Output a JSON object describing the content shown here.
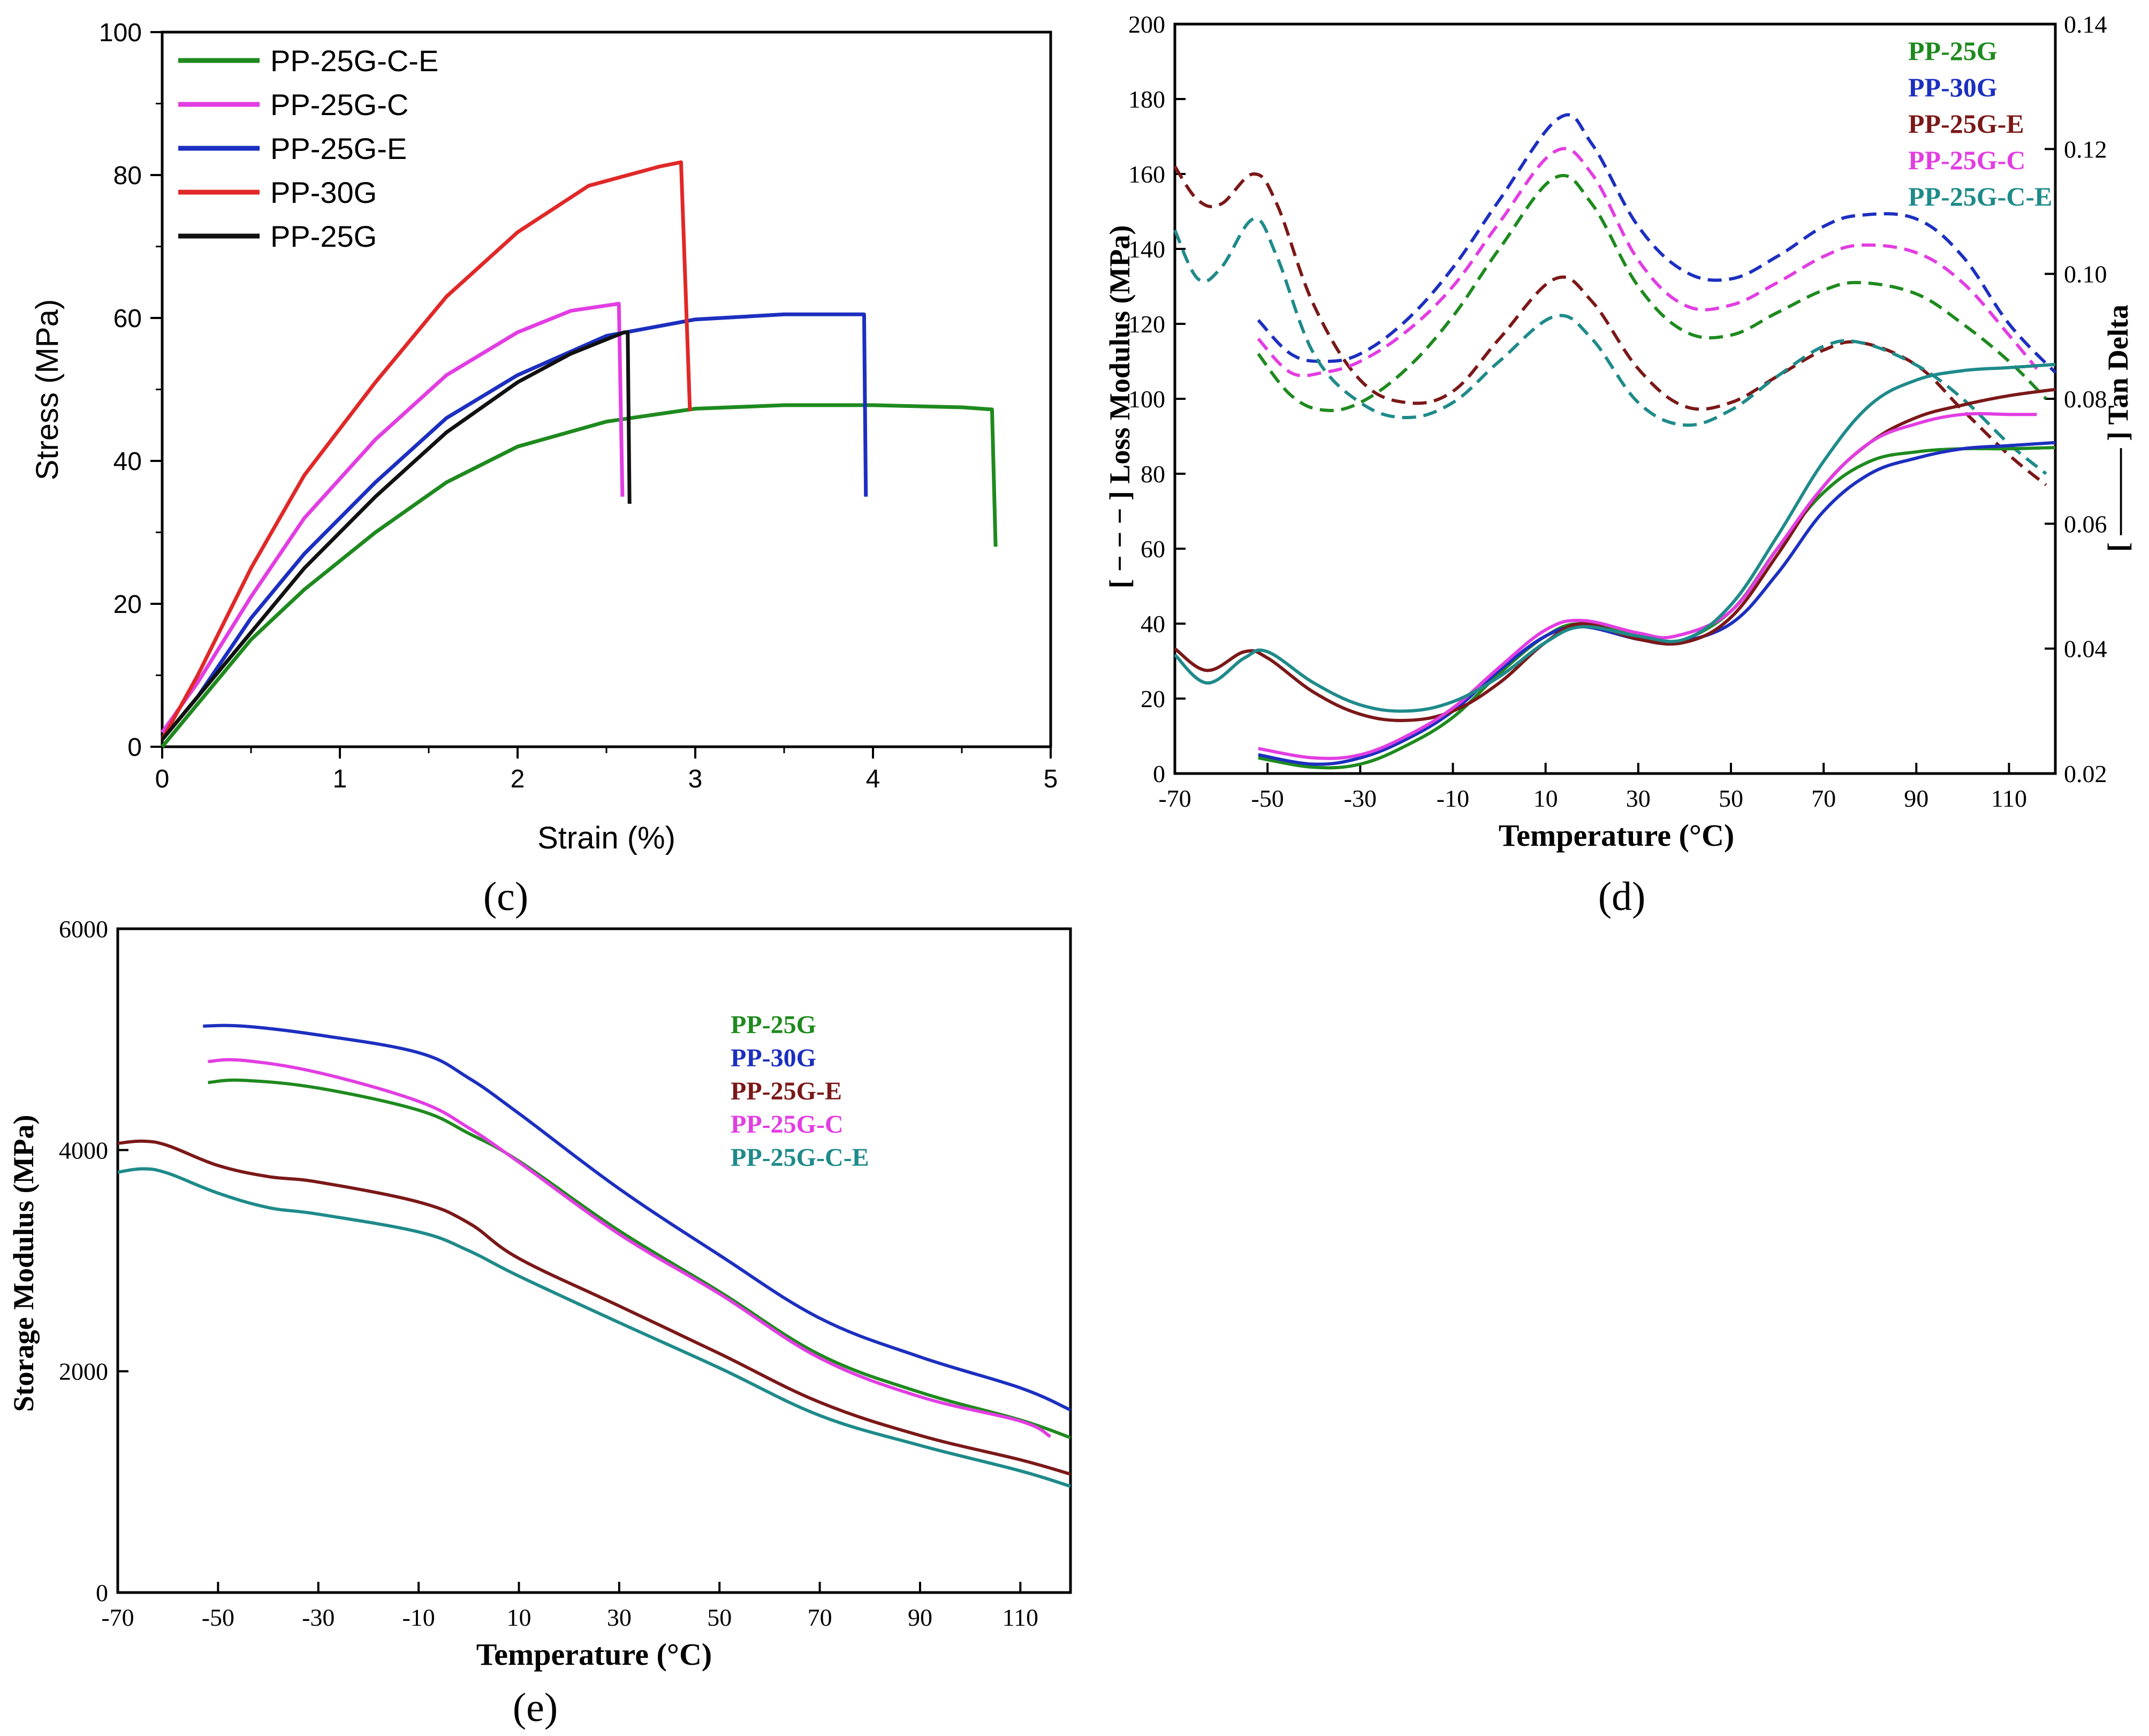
{
  "panels": {
    "c": {
      "caption": "(c)",
      "xlabel": "Strain (%)",
      "ylabel": "Stress (MPa)",
      "xlim": [
        0,
        5
      ],
      "ylim": [
        0,
        100
      ],
      "xticks": [
        "0",
        "1",
        "2",
        "3",
        "4",
        "5"
      ],
      "yticks": [
        "0",
        "20",
        "40",
        "60",
        "80",
        "100"
      ]
    },
    "d": {
      "caption": "(d)",
      "xlabel": "Temperature (°C)",
      "ylabel_left": "[ − − − ] Loss Modulus (MPa)",
      "ylabel_right": "[ ——— ] Tan Delta",
      "xticks": [
        "-70",
        "-50",
        "-30",
        "-10",
        "10",
        "30",
        "50",
        "70",
        "90",
        "110"
      ],
      "yticks_left": [
        "0",
        "20",
        "40",
        "60",
        "80",
        "100",
        "120",
        "140",
        "160",
        "180",
        "200"
      ],
      "yticks_right": [
        "0.02",
        "0.04",
        "0.06",
        "0.08",
        "0.10",
        "0.12",
        "0.14"
      ]
    },
    "e": {
      "caption": "(e)",
      "xlabel": "Temperature (°C)",
      "ylabel": "Storage Modulus (MPa)",
      "xticks": [
        "-70",
        "-50",
        "-30",
        "-10",
        "10",
        "30",
        "50",
        "70",
        "90",
        "110"
      ],
      "yticks": [
        "0",
        "2000",
        "4000",
        "6000"
      ]
    }
  },
  "chart_data": [
    {
      "panel": "c",
      "type": "line",
      "title": "",
      "xlabel": "Strain (%)",
      "ylabel": "Stress (MPa)",
      "xlim": [
        0,
        5
      ],
      "ylim": [
        0,
        100
      ],
      "grid": false,
      "legend_position": "top-left",
      "series": [
        {
          "name": "PP-25G-C-E",
          "color": "#1e8a1e",
          "x": [
            0,
            0.2,
            0.5,
            0.8,
            1.2,
            1.6,
            2.0,
            2.5,
            3.0,
            3.5,
            4.0,
            4.5,
            4.67,
            4.69
          ],
          "y": [
            0,
            6,
            15,
            22,
            30,
            37,
            42,
            45.5,
            47.3,
            47.8,
            47.8,
            47.5,
            47.2,
            28
          ]
        },
        {
          "name": "PP-25G-C",
          "color": "#e23de2",
          "x": [
            0,
            0.2,
            0.5,
            0.8,
            1.2,
            1.6,
            2.0,
            2.3,
            2.57,
            2.59
          ],
          "y": [
            2,
            9,
            21,
            32,
            43,
            52,
            58,
            61,
            62,
            35
          ]
        },
        {
          "name": "PP-25G-E",
          "color": "#1c2fc0",
          "x": [
            0,
            0.2,
            0.5,
            0.8,
            1.2,
            1.6,
            2.0,
            2.5,
            3.0,
            3.5,
            3.95,
            3.96
          ],
          "y": [
            1,
            7,
            18,
            27,
            37,
            46,
            52,
            57.5,
            59.8,
            60.5,
            60.5,
            35
          ]
        },
        {
          "name": "PP-30G",
          "color": "#e02828",
          "x": [
            0,
            0.2,
            0.5,
            0.8,
            1.2,
            1.6,
            2.0,
            2.4,
            2.8,
            2.92,
            2.97
          ],
          "y": [
            1,
            10,
            25,
            38,
            51,
            63,
            72,
            78.5,
            81.2,
            81.8,
            47
          ]
        },
        {
          "name": "PP-25G",
          "color": "#111111",
          "x": [
            0,
            0.2,
            0.5,
            0.8,
            1.2,
            1.6,
            2.0,
            2.3,
            2.6,
            2.62,
            2.63
          ],
          "y": [
            1,
            7,
            16,
            25,
            35,
            44,
            51,
            55,
            58,
            58,
            34
          ]
        }
      ]
    },
    {
      "panel": "d",
      "type": "line",
      "title": "",
      "xlabel": "Temperature (°C)",
      "ylabel_left": "Loss Modulus (MPa)",
      "ylabel_right": "Tan Delta",
      "xlim": [
        -70,
        120
      ],
      "ylim_left": [
        0,
        200
      ],
      "ylim_right": [
        0.02,
        0.14
      ],
      "grid": false,
      "legend_position": "top-right",
      "legend": [
        {
          "name": "PP-25G",
          "color": "#1e8a1e"
        },
        {
          "name": "PP-30G",
          "color": "#1c2fc0"
        },
        {
          "name": "PP-25G-E",
          "color": "#7b1818"
        },
        {
          "name": "PP-25G-C",
          "color": "#e23de2"
        },
        {
          "name": "PP-25G-C-E",
          "color": "#1f8a8a"
        }
      ],
      "series": [
        {
          "name": "PP-25G",
          "axis": "left",
          "style": "dashed",
          "color": "#1e8a1e",
          "x": [
            -52,
            -45,
            -38,
            -30,
            -20,
            -10,
            0,
            12,
            20,
            30,
            40,
            50,
            60,
            70,
            78,
            90,
            100,
            110,
            118
          ],
          "y": [
            112,
            101,
            97,
            99,
            108,
            122,
            140,
            159,
            152,
            130,
            118,
            117,
            123,
            129,
            131,
            128,
            120,
            110,
            100
          ]
        },
        {
          "name": "PP-30G",
          "axis": "left",
          "style": "dashed",
          "color": "#1c2fc0",
          "x": [
            -52,
            -45,
            -38,
            -30,
            -20,
            -10,
            0,
            13,
            20,
            30,
            40,
            50,
            60,
            70,
            78,
            90,
            100,
            110,
            120
          ],
          "y": [
            121,
            112,
            110,
            112,
            121,
            135,
            153,
            175,
            168,
            146,
            134,
            132,
            138,
            146,
            149,
            148,
            138,
            120,
            107
          ]
        },
        {
          "name": "PP-25G-E",
          "axis": "left",
          "style": "dashed",
          "color": "#7b1818",
          "x": [
            -70,
            -65,
            -60,
            -53,
            -48,
            -40,
            -30,
            -20,
            -10,
            0,
            12,
            20,
            30,
            40,
            50,
            60,
            70,
            78,
            90,
            100,
            110,
            118
          ],
          "y": [
            162,
            153,
            152,
            160,
            152,
            125,
            105,
            99,
            102,
            116,
            132,
            126,
            108,
            98,
            99,
            106,
            113,
            115,
            109,
            97,
            85,
            77
          ]
        },
        {
          "name": "PP-25G-C",
          "axis": "left",
          "style": "dashed",
          "color": "#e23de2",
          "x": [
            -52,
            -45,
            -38,
            -30,
            -20,
            -10,
            0,
            12,
            20,
            30,
            40,
            50,
            60,
            70,
            78,
            90,
            100,
            110,
            116
          ],
          "y": [
            116,
            107,
            107,
            110,
            118,
            130,
            147,
            166,
            160,
            137,
            125,
            125,
            131,
            138,
            141,
            139,
            131,
            117,
            108
          ]
        },
        {
          "name": "PP-25G-C-E",
          "axis": "left",
          "style": "dashed",
          "color": "#1f8a8a",
          "x": [
            -70,
            -65,
            -60,
            -53,
            -48,
            -40,
            -30,
            -20,
            -10,
            0,
            12,
            20,
            30,
            40,
            50,
            60,
            70,
            78,
            90,
            100,
            110,
            118
          ],
          "y": [
            145,
            132,
            135,
            148,
            138,
            112,
            99,
            95,
            99,
            110,
            122,
            116,
            99,
            93,
            97,
            106,
            114,
            115,
            109,
            100,
            88,
            80
          ]
        },
        {
          "name": "PP-25G",
          "axis": "right",
          "style": "solid",
          "color": "#1e8a1e",
          "x": [
            -52,
            -40,
            -30,
            -20,
            -10,
            0,
            10,
            18,
            30,
            38,
            50,
            60,
            70,
            80,
            90,
            100,
            110,
            120
          ],
          "y": [
            0.0225,
            0.021,
            0.0215,
            0.0245,
            0.029,
            0.036,
            0.042,
            0.044,
            0.042,
            0.041,
            0.046,
            0.056,
            0.065,
            0.07,
            0.0715,
            0.072,
            0.072,
            0.0722
          ]
        },
        {
          "name": "PP-30G",
          "axis": "right",
          "style": "solid",
          "color": "#1c2fc0",
          "x": [
            -52,
            -40,
            -30,
            -20,
            -10,
            0,
            10,
            18,
            30,
            38,
            50,
            60,
            70,
            80,
            90,
            100,
            110,
            120
          ],
          "y": [
            0.023,
            0.0215,
            0.0225,
            0.0255,
            0.03,
            0.0365,
            0.042,
            0.0435,
            0.0415,
            0.041,
            0.044,
            0.052,
            0.062,
            0.068,
            0.0705,
            0.072,
            0.0725,
            0.073
          ]
        },
        {
          "name": "PP-25G-E",
          "axis": "right",
          "style": "solid",
          "color": "#7b1818",
          "x": [
            -70,
            -63,
            -55,
            -50,
            -40,
            -30,
            -20,
            -10,
            0,
            10,
            18,
            30,
            40,
            50,
            60,
            70,
            80,
            90,
            100,
            110,
            120
          ],
          "y": [
            0.04,
            0.0365,
            0.0395,
            0.0385,
            0.033,
            0.0295,
            0.0285,
            0.03,
            0.0345,
            0.041,
            0.044,
            0.0415,
            0.041,
            0.045,
            0.055,
            0.066,
            0.073,
            0.077,
            0.079,
            0.0805,
            0.0815
          ]
        },
        {
          "name": "PP-25G-C",
          "axis": "right",
          "style": "solid",
          "color": "#e23de2",
          "x": [
            -52,
            -40,
            -30,
            -20,
            -10,
            0,
            10,
            18,
            30,
            38,
            50,
            60,
            70,
            80,
            90,
            100,
            110,
            116
          ],
          "y": [
            0.024,
            0.0225,
            0.023,
            0.026,
            0.0305,
            0.037,
            0.043,
            0.0445,
            0.0425,
            0.042,
            0.046,
            0.056,
            0.066,
            0.073,
            0.076,
            0.0775,
            0.0775,
            0.0775
          ]
        },
        {
          "name": "PP-25G-C-E",
          "axis": "right",
          "style": "solid",
          "color": "#1f8a8a",
          "x": [
            -70,
            -63,
            -55,
            -50,
            -40,
            -30,
            -20,
            -10,
            0,
            10,
            18,
            30,
            40,
            50,
            60,
            70,
            80,
            90,
            100,
            110,
            120
          ],
          "y": [
            0.039,
            0.0345,
            0.0385,
            0.0395,
            0.0345,
            0.031,
            0.03,
            0.0315,
            0.0355,
            0.041,
            0.0435,
            0.042,
            0.0415,
            0.047,
            0.058,
            0.07,
            0.079,
            0.083,
            0.0845,
            0.085,
            0.0855
          ]
        }
      ]
    },
    {
      "panel": "e",
      "type": "line",
      "title": "",
      "xlabel": "Temperature (°C)",
      "ylabel": "Storage Modulus (MPa)",
      "xlim": [
        -70,
        120
      ],
      "ylim": [
        0,
        6000
      ],
      "grid": false,
      "legend_position": "top-right",
      "series": [
        {
          "name": "PP-25G",
          "color": "#1e8a1e",
          "x": [
            -52,
            -45,
            -30,
            -10,
            0,
            10,
            30,
            50,
            70,
            90,
            110,
            120
          ],
          "y": [
            4610,
            4630,
            4560,
            4360,
            4150,
            3900,
            3270,
            2720,
            2150,
            1810,
            1560,
            1400
          ]
        },
        {
          "name": "PP-30G",
          "color": "#1c2fc0",
          "x": [
            -53,
            -45,
            -30,
            -10,
            0,
            10,
            30,
            50,
            70,
            90,
            110,
            120
          ],
          "y": [
            5120,
            5120,
            5040,
            4880,
            4650,
            4330,
            3650,
            3050,
            2480,
            2130,
            1850,
            1650
          ]
        },
        {
          "name": "PP-25G-E",
          "color": "#7b1818",
          "x": [
            -70,
            -65,
            -60,
            -50,
            -40,
            -30,
            -10,
            0,
            10,
            30,
            50,
            70,
            90,
            110,
            120
          ],
          "y": [
            4060,
            4080,
            4040,
            3860,
            3760,
            3710,
            3530,
            3340,
            3020,
            2590,
            2160,
            1720,
            1420,
            1200,
            1070
          ]
        },
        {
          "name": "PP-25G-C",
          "color": "#e23de2",
          "x": [
            -52,
            -45,
            -30,
            -10,
            0,
            10,
            30,
            50,
            70,
            90,
            110,
            116
          ],
          "y": [
            4800,
            4810,
            4700,
            4440,
            4200,
            3890,
            3240,
            2700,
            2120,
            1770,
            1550,
            1410
          ]
        },
        {
          "name": "PP-25G-C-E",
          "color": "#1f8a8a",
          "x": [
            -70,
            -65,
            -60,
            -50,
            -40,
            -30,
            -10,
            0,
            10,
            30,
            50,
            70,
            90,
            110,
            120
          ],
          "y": [
            3800,
            3830,
            3790,
            3610,
            3480,
            3420,
            3260,
            3090,
            2860,
            2440,
            2030,
            1600,
            1330,
            1100,
            960
          ]
        }
      ]
    }
  ]
}
